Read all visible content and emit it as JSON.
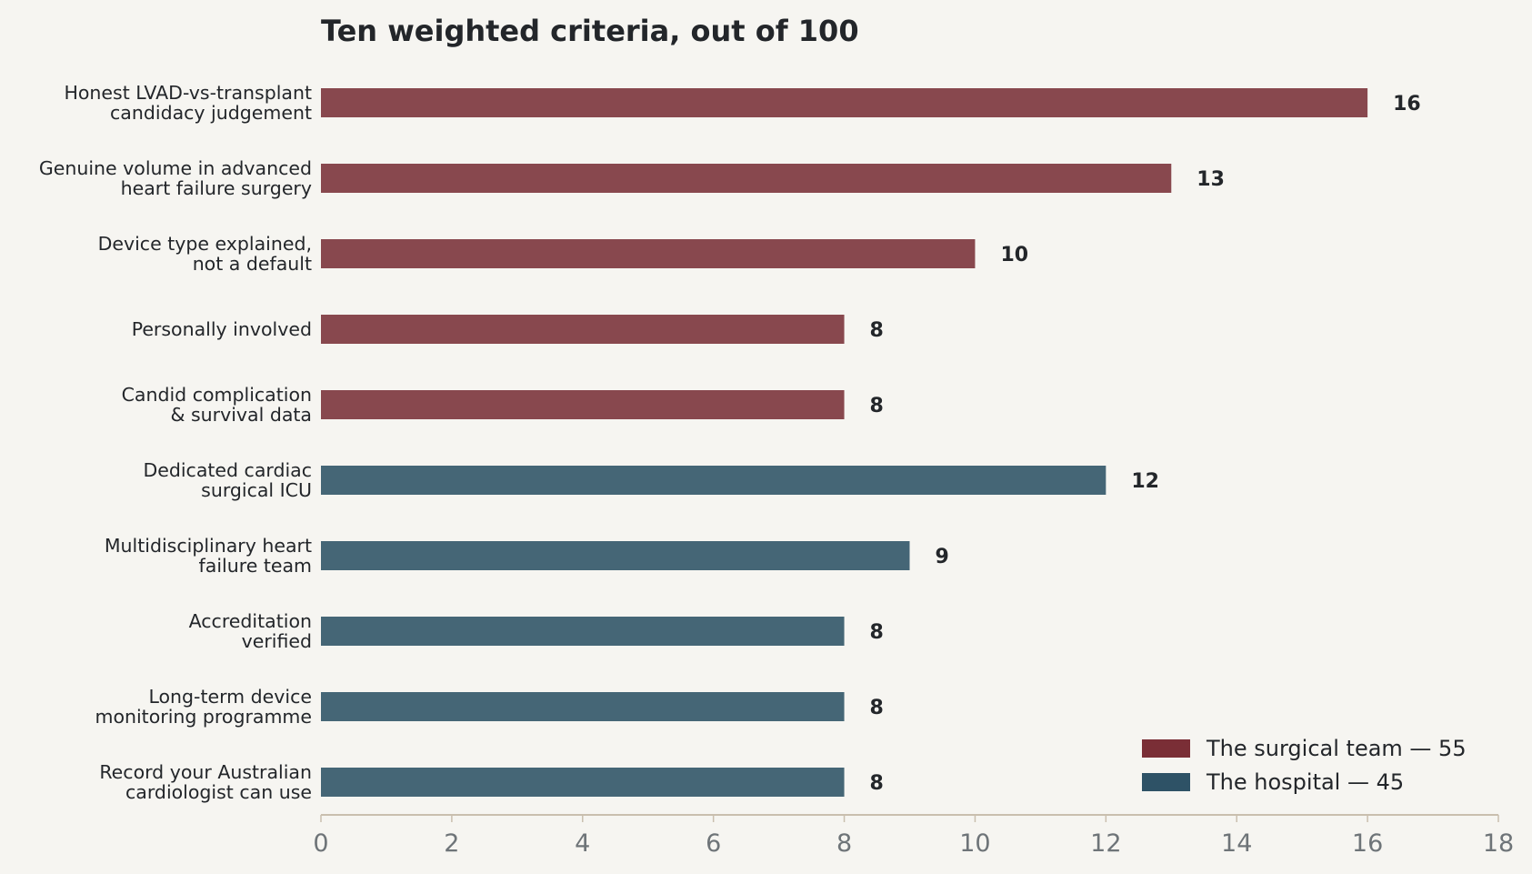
{
  "chart_data": {
    "type": "bar",
    "orientation": "horizontal",
    "title": "Ten weighted criteria, out of 100",
    "xlabel": "",
    "ylabel": "",
    "xlim": [
      0,
      18
    ],
    "xticks": [
      0,
      2,
      4,
      6,
      8,
      10,
      12,
      14,
      16,
      18
    ],
    "grid": false,
    "legend_position": "bottom-right",
    "categories": [
      [
        "Honest LVAD-vs-transplant",
        "candidacy judgement"
      ],
      [
        "Genuine volume in advanced",
        "heart failure surgery"
      ],
      [
        "Device type explained,",
        "not a default"
      ],
      [
        "Personally involved"
      ],
      [
        "Candid complication",
        "& survival data"
      ],
      [
        "Dedicated cardiac",
        "surgical ICU"
      ],
      [
        "Multidisciplinary heart",
        "failure team"
      ],
      [
        "Accreditation",
        "verified"
      ],
      [
        "Long-term device",
        "monitoring programme"
      ],
      [
        "Record your Australian",
        "cardiologist can use"
      ]
    ],
    "values": [
      16,
      13,
      10,
      8,
      8,
      12,
      9,
      8,
      8,
      8
    ],
    "groups": [
      0,
      0,
      0,
      0,
      0,
      1,
      1,
      1,
      1,
      1
    ],
    "series": [
      {
        "name": "The surgical team — 55",
        "color": "#7a2e36",
        "bar_color": "#88484e"
      },
      {
        "name": "The hospital — 45",
        "color": "#2e5266",
        "bar_color": "#456676"
      }
    ],
    "colors": {
      "axis": "#c9bfae",
      "tick_text": "#6e7478",
      "text": "#23262a",
      "background": "#f6f5f1"
    }
  }
}
